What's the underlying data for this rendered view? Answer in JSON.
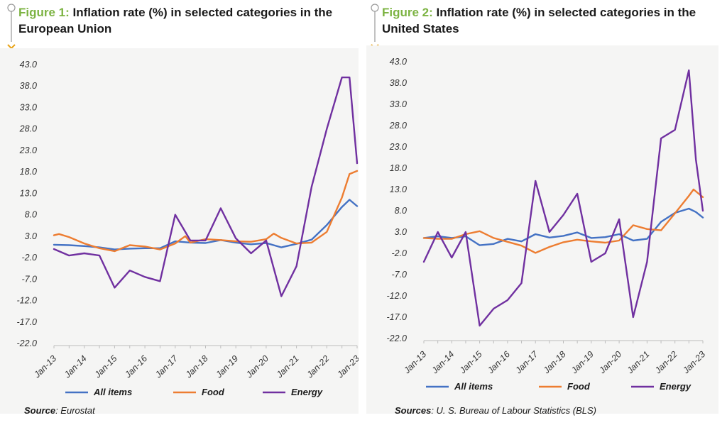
{
  "colors": {
    "all_items": "#4472c4",
    "food": "#ed7d31",
    "energy": "#7030a0",
    "figure_label": "#7cb342"
  },
  "figures": [
    {
      "figure_label": "Figure 1:",
      "title": "Inflation rate (%) in selected categories in the European Union",
      "source_label": "Source",
      "source_text": ": Eurostat"
    },
    {
      "figure_label": "Figure 2:",
      "title": "Inflation rate (%) in selected categories in the United States",
      "source_label": "Sources",
      "source_text": ": U. S. Bureau of Labour Statistics (BLS)"
    }
  ],
  "chart_data": [
    {
      "type": "line",
      "title": "Inflation rate (%) in selected categories in the European Union",
      "x_labels": [
        "Jan-13",
        "Jan-14",
        "Jan-15",
        "Jan-16",
        "Jan-17",
        "Jan-18",
        "Jan-19",
        "Jan-20",
        "Jan-21",
        "Jan-22",
        "Jan-23"
      ],
      "y_ticks": [
        "43.0",
        "38.0",
        "33.0",
        "28.0",
        "23.0",
        "18.0",
        "13.0",
        "8.0",
        "3.0",
        "-2.0",
        "-7.0",
        "-12.0",
        "-17.0",
        "-22.0"
      ],
      "ylim": [
        -22,
        43
      ],
      "legend_position": "bottom",
      "series": [
        {
          "name": "All items",
          "color": "#4472c4",
          "points": [
            [
              "Jan-13",
              1.0
            ],
            [
              "Jul-13",
              0.9
            ],
            [
              "Jan-14",
              0.7
            ],
            [
              "Jul-14",
              0.4
            ],
            [
              "Jan-15",
              -0.1
            ],
            [
              "Jul-15",
              0.1
            ],
            [
              "Jan-16",
              0.2
            ],
            [
              "Jul-16",
              0.2
            ],
            [
              "Jan-17",
              1.8
            ],
            [
              "Jul-17",
              1.5
            ],
            [
              "Jan-18",
              1.4
            ],
            [
              "Jul-18",
              2.1
            ],
            [
              "Jan-19",
              1.5
            ],
            [
              "Jul-19",
              1.1
            ],
            [
              "Jan-20",
              1.4
            ],
            [
              "Jul-20",
              0.4
            ],
            [
              "Jan-21",
              1.2
            ],
            [
              "Jul-21",
              2.2
            ],
            [
              "Jan-22",
              5.6
            ],
            [
              "Jul-22",
              9.8
            ],
            [
              "Oct-22",
              11.5
            ],
            [
              "Jan-23",
              10.0
            ]
          ]
        },
        {
          "name": "Food",
          "color": "#ed7d31",
          "points": [
            [
              "Jan-13",
              3.2
            ],
            [
              "Mar-13",
              3.5
            ],
            [
              "Jul-13",
              2.8
            ],
            [
              "Jan-14",
              1.3
            ],
            [
              "Jul-14",
              0.2
            ],
            [
              "Jan-15",
              -0.5
            ],
            [
              "Jul-15",
              0.9
            ],
            [
              "Jan-16",
              0.6
            ],
            [
              "Jul-16",
              -0.1
            ],
            [
              "Jan-17",
              1.3
            ],
            [
              "May-17",
              3.0
            ],
            [
              "Jul-17",
              1.5
            ],
            [
              "Jan-18",
              2.3
            ],
            [
              "Jul-18",
              2.1
            ],
            [
              "Jan-19",
              1.8
            ],
            [
              "Jul-19",
              1.7
            ],
            [
              "Jan-20",
              2.3
            ],
            [
              "Apr-20",
              3.6
            ],
            [
              "Jul-20",
              2.6
            ],
            [
              "Jan-21",
              1.3
            ],
            [
              "Jul-21",
              1.5
            ],
            [
              "Jan-22",
              4.0
            ],
            [
              "Jul-22",
              12.0
            ],
            [
              "Oct-22",
              17.5
            ],
            [
              "Jan-23",
              18.2
            ]
          ]
        },
        {
          "name": "Energy",
          "color": "#7030a0",
          "points": [
            [
              "Jan-13",
              0.0
            ],
            [
              "Jul-13",
              -1.5
            ],
            [
              "Jan-14",
              -1.0
            ],
            [
              "Jul-14",
              -1.5
            ],
            [
              "Jan-15",
              -9.0
            ],
            [
              "Jul-15",
              -5.0
            ],
            [
              "Jan-16",
              -6.5
            ],
            [
              "Jul-16",
              -7.5
            ],
            [
              "Jan-17",
              8.0
            ],
            [
              "Jul-17",
              2.0
            ],
            [
              "Jan-18",
              2.0
            ],
            [
              "Jul-18",
              9.5
            ],
            [
              "Jan-19",
              2.5
            ],
            [
              "Jul-19",
              -1.0
            ],
            [
              "Jan-20",
              2.0
            ],
            [
              "Jul-20",
              -11.0
            ],
            [
              "Jan-21",
              -4.0
            ],
            [
              "Jul-21",
              14.5
            ],
            [
              "Jan-22",
              28.0
            ],
            [
              "Jul-22",
              40.0
            ],
            [
              "Oct-22",
              40.0
            ],
            [
              "Jan-23",
              20.0
            ]
          ]
        }
      ]
    },
    {
      "type": "line",
      "title": "Inflation rate (%) in selected categories in the United States",
      "x_labels": [
        "Jan-13",
        "Jan-14",
        "Jan-15",
        "Jan-16",
        "Jan-17",
        "Jan-18",
        "Jan-19",
        "Jan-20",
        "Jan-21",
        "Jan-22",
        "Jan-23"
      ],
      "y_ticks": [
        "43.0",
        "38.0",
        "33.0",
        "28.0",
        "23.0",
        "18.0",
        "13.0",
        "8.0",
        "3.0",
        "-2.0",
        "-7.0",
        "-12.0",
        "-17.0",
        "-22.0"
      ],
      "ylim": [
        -22,
        43
      ],
      "legend_position": "bottom",
      "series": [
        {
          "name": "All items",
          "color": "#4472c4",
          "points": [
            [
              "Jan-13",
              1.6
            ],
            [
              "Jul-13",
              2.0
            ],
            [
              "Jan-14",
              1.6
            ],
            [
              "Jul-14",
              2.0
            ],
            [
              "Jan-15",
              -0.1
            ],
            [
              "Jul-15",
              0.2
            ],
            [
              "Jan-16",
              1.4
            ],
            [
              "Jul-16",
              0.8
            ],
            [
              "Jan-17",
              2.5
            ],
            [
              "Jul-17",
              1.7
            ],
            [
              "Jan-18",
              2.1
            ],
            [
              "Jul-18",
              2.9
            ],
            [
              "Jan-19",
              1.6
            ],
            [
              "Jul-19",
              1.8
            ],
            [
              "Jan-20",
              2.5
            ],
            [
              "Jul-20",
              1.0
            ],
            [
              "Jan-21",
              1.4
            ],
            [
              "Jul-21",
              5.4
            ],
            [
              "Jan-22",
              7.5
            ],
            [
              "Jul-22",
              8.5
            ],
            [
              "Oct-22",
              7.7
            ],
            [
              "Jan-23",
              6.4
            ]
          ]
        },
        {
          "name": "Food",
          "color": "#ed7d31",
          "points": [
            [
              "Jan-13",
              1.6
            ],
            [
              "Jul-13",
              1.4
            ],
            [
              "Jan-14",
              1.4
            ],
            [
              "Jul-14",
              2.5
            ],
            [
              "Jan-15",
              3.2
            ],
            [
              "Jul-15",
              1.6
            ],
            [
              "Jan-16",
              0.7
            ],
            [
              "Jul-16",
              -0.2
            ],
            [
              "Jan-17",
              -1.9
            ],
            [
              "Jul-17",
              -0.5
            ],
            [
              "Jan-18",
              0.6
            ],
            [
              "Jul-18",
              1.2
            ],
            [
              "Jan-19",
              0.8
            ],
            [
              "Jul-19",
              0.5
            ],
            [
              "Jan-20",
              1.0
            ],
            [
              "Jul-20",
              4.6
            ],
            [
              "Jan-21",
              3.7
            ],
            [
              "Jul-21",
              3.4
            ],
            [
              "Jan-22",
              7.4
            ],
            [
              "Jul-22",
              11.5
            ],
            [
              "Sep-22",
              13.0
            ],
            [
              "Jan-23",
              11.2
            ]
          ]
        },
        {
          "name": "Energy",
          "color": "#7030a0",
          "points": [
            [
              "Jan-13",
              -4.0
            ],
            [
              "Jul-13",
              3.0
            ],
            [
              "Jan-14",
              -3.0
            ],
            [
              "Jul-14",
              3.0
            ],
            [
              "Jan-15",
              -19.0
            ],
            [
              "Jul-15",
              -15.0
            ],
            [
              "Jan-16",
              -13.0
            ],
            [
              "Jul-16",
              -9.0
            ],
            [
              "Jan-17",
              15.0
            ],
            [
              "Jul-17",
              3.0
            ],
            [
              "Jan-18",
              7.0
            ],
            [
              "Jul-18",
              12.0
            ],
            [
              "Jan-19",
              -4.0
            ],
            [
              "Jul-19",
              -2.0
            ],
            [
              "Jan-20",
              6.0
            ],
            [
              "Jul-20",
              -17.0
            ],
            [
              "Jan-21",
              -4.0
            ],
            [
              "Jul-21",
              25.0
            ],
            [
              "Jan-22",
              27.0
            ],
            [
              "Jul-22",
              41.0
            ],
            [
              "Oct-22",
              20.0
            ],
            [
              "Jan-23",
              8.0
            ]
          ]
        }
      ]
    }
  ]
}
